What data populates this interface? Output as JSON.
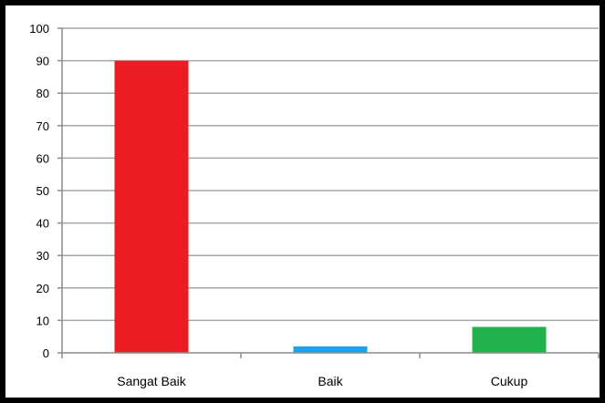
{
  "chart_data": {
    "type": "bar",
    "title": "",
    "xlabel": "",
    "ylabel": "",
    "categories": [
      "Sangat Baik",
      "Baik",
      "Cukup"
    ],
    "values": [
      90,
      2,
      8
    ],
    "colors": [
      "#ed1c24",
      "#1aa3e8",
      "#22b14c"
    ],
    "ylim": [
      0,
      100
    ],
    "yticks": [
      0,
      10,
      20,
      30,
      40,
      50,
      60,
      70,
      80,
      90,
      100
    ],
    "grid": true,
    "legend": "none"
  }
}
